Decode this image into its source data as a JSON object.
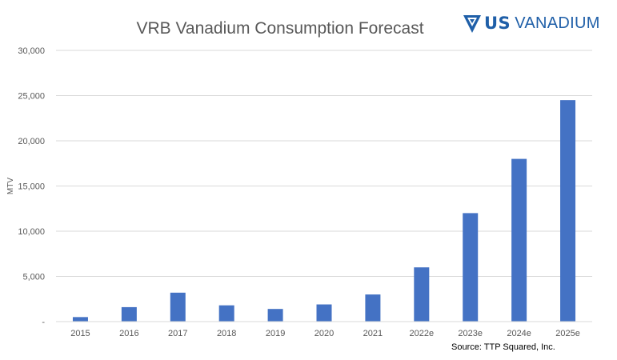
{
  "logo": {
    "brand_us": "US",
    "brand_name": "VANADIUM",
    "color": "#1f5fa8"
  },
  "source_note": "Source:  TTP Squared, Inc.",
  "chart_data": {
    "type": "bar",
    "title": "VRB Vanadium Consumption Forecast",
    "xlabel": "",
    "ylabel": "MTV",
    "categories": [
      "2015",
      "2016",
      "2017",
      "2018",
      "2019",
      "2020",
      "2021",
      "2022e",
      "2023e",
      "2024e",
      "2025e"
    ],
    "values": [
      500,
      1600,
      3200,
      1800,
      1400,
      1900,
      3000,
      6000,
      12000,
      18000,
      24500
    ],
    "ylim": [
      0,
      30000
    ],
    "yticks": [
      0,
      5000,
      10000,
      15000,
      20000,
      25000,
      30000
    ],
    "ytick_labels": [
      "-",
      "5,000",
      "10,000",
      "15,000",
      "20,000",
      "25,000",
      "30,000"
    ],
    "grid": true,
    "legend": "none",
    "bar_color": "#4472c4",
    "grid_color": "#d9d9d9"
  }
}
